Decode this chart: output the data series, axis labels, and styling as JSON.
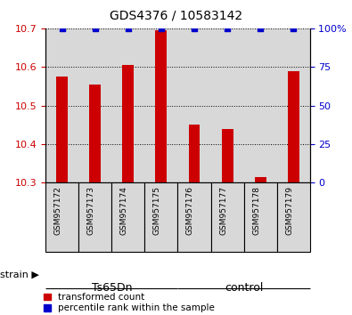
{
  "title": "GDS4376 / 10583142",
  "samples": [
    "GSM957172",
    "GSM957173",
    "GSM957174",
    "GSM957175",
    "GSM957176",
    "GSM957177",
    "GSM957178",
    "GSM957179"
  ],
  "red_values": [
    10.575,
    10.555,
    10.605,
    10.695,
    10.45,
    10.44,
    10.315,
    10.59
  ],
  "blue_values": [
    100,
    100,
    100,
    100,
    100,
    100,
    100,
    100
  ],
  "ylim_left": [
    10.3,
    10.7
  ],
  "ylim_right": [
    0,
    100
  ],
  "yticks_left": [
    10.3,
    10.4,
    10.5,
    10.6,
    10.7
  ],
  "yticks_right": [
    0,
    25,
    50,
    75,
    100
  ],
  "bar_color": "#cc0000",
  "dot_color": "#0000cc",
  "groups": [
    {
      "label": "Ts65Dn",
      "indices": [
        0,
        1,
        2,
        3
      ],
      "color": "#ccffcc"
    },
    {
      "label": "control",
      "indices": [
        4,
        5,
        6,
        7
      ],
      "color": "#66ee66"
    }
  ],
  "col_bg_color": "#d8d8d8",
  "strain_label": "strain",
  "legend_items": [
    {
      "label": "transformed count",
      "color": "#cc0000"
    },
    {
      "label": "percentile rank within the sample",
      "color": "#0000cc"
    }
  ],
  "base_value": 10.3,
  "fig_width": 3.95,
  "fig_height": 3.54,
  "dpi": 100
}
